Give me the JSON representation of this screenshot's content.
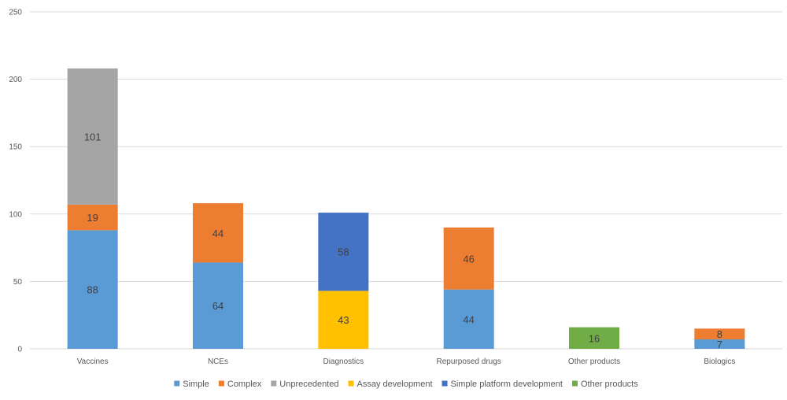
{
  "chart_data": {
    "type": "bar",
    "stacked": true,
    "categories": [
      "Vaccines",
      "NCEs",
      "Diagnostics",
      "Repurposed drugs",
      "Other products",
      "Biologics"
    ],
    "series": [
      {
        "name": "Simple",
        "color": "#5B9BD5",
        "values": [
          88,
          64,
          null,
          44,
          null,
          7
        ]
      },
      {
        "name": "Complex",
        "color": "#ED7D31",
        "values": [
          19,
          44,
          null,
          46,
          null,
          8
        ]
      },
      {
        "name": "Unprecedented",
        "color": "#A5A5A5",
        "values": [
          101,
          null,
          null,
          null,
          null,
          null
        ]
      },
      {
        "name": "Assay development",
        "color": "#FFC000",
        "values": [
          null,
          null,
          43,
          null,
          null,
          null
        ]
      },
      {
        "name": "Simple platform development",
        "color": "#4472C4",
        "values": [
          null,
          null,
          58,
          null,
          null,
          null
        ]
      },
      {
        "name": "Other products",
        "color": "#70AD47",
        "values": [
          null,
          null,
          null,
          null,
          16,
          null
        ]
      }
    ],
    "ylim": [
      0,
      250
    ],
    "yticks": [
      0,
      50,
      100,
      150,
      200,
      250
    ],
    "grid": true,
    "legend_position": "bottom",
    "title": "",
    "xlabel": "",
    "ylabel": ""
  }
}
